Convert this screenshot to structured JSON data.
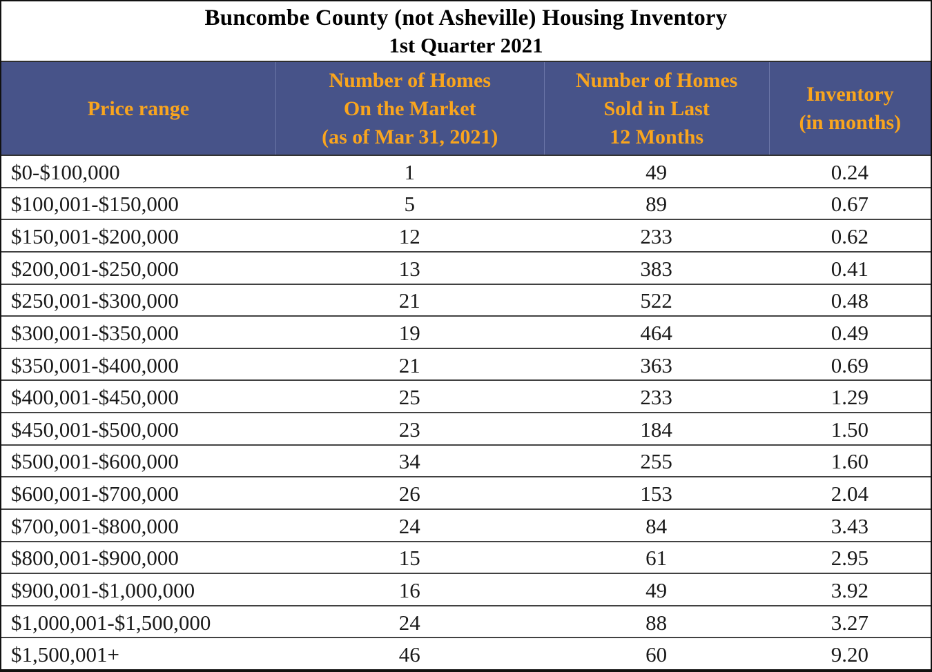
{
  "title": {
    "line1": "Buncombe County (not Asheville) Housing Inventory",
    "line2": "1st Quarter 2021"
  },
  "table": {
    "columns": [
      {
        "id": "price-range",
        "lines": [
          "Price range"
        ]
      },
      {
        "id": "on-market",
        "lines": [
          "Number of Homes",
          "On the Market",
          "(as of Mar 31, 2021)"
        ]
      },
      {
        "id": "sold-12-months",
        "lines": [
          "Number of Homes",
          "Sold in Last",
          "12 Months"
        ]
      },
      {
        "id": "inventory-months",
        "lines": [
          "Inventory",
          "(in months)"
        ]
      }
    ],
    "rows": [
      {
        "price_range": "$0-$100,000",
        "on_market": "1",
        "sold_12_months": "49",
        "inventory_months": "0.24"
      },
      {
        "price_range": "$100,001-$150,000",
        "on_market": "5",
        "sold_12_months": "89",
        "inventory_months": "0.67"
      },
      {
        "price_range": "$150,001-$200,000",
        "on_market": "12",
        "sold_12_months": "233",
        "inventory_months": "0.62"
      },
      {
        "price_range": "$200,001-$250,000",
        "on_market": "13",
        "sold_12_months": "383",
        "inventory_months": "0.41"
      },
      {
        "price_range": "$250,001-$300,000",
        "on_market": "21",
        "sold_12_months": "522",
        "inventory_months": "0.48"
      },
      {
        "price_range": "$300,001-$350,000",
        "on_market": "19",
        "sold_12_months": "464",
        "inventory_months": "0.49"
      },
      {
        "price_range": "$350,001-$400,000",
        "on_market": "21",
        "sold_12_months": "363",
        "inventory_months": "0.69"
      },
      {
        "price_range": "$400,001-$450,000",
        "on_market": "25",
        "sold_12_months": "233",
        "inventory_months": "1.29"
      },
      {
        "price_range": "$450,001-$500,000",
        "on_market": "23",
        "sold_12_months": "184",
        "inventory_months": "1.50"
      },
      {
        "price_range": "$500,001-$600,000",
        "on_market": "34",
        "sold_12_months": "255",
        "inventory_months": "1.60"
      },
      {
        "price_range": "$600,001-$700,000",
        "on_market": "26",
        "sold_12_months": "153",
        "inventory_months": "2.04"
      },
      {
        "price_range": "$700,001-$800,000",
        "on_market": "24",
        "sold_12_months": "84",
        "inventory_months": "3.43"
      },
      {
        "price_range": "$800,001-$900,000",
        "on_market": "15",
        "sold_12_months": "61",
        "inventory_months": "2.95"
      },
      {
        "price_range": "$900,001-$1,000,000",
        "on_market": "16",
        "sold_12_months": "49",
        "inventory_months": "3.92"
      },
      {
        "price_range": "$1,000,001-$1,500,000",
        "on_market": "24",
        "sold_12_months": "88",
        "inventory_months": "3.27"
      },
      {
        "price_range": "$1,500,001+",
        "on_market": "46",
        "sold_12_months": "60",
        "inventory_months": "9.20"
      }
    ]
  },
  "colors": {
    "header_background": "#475389",
    "header_text": "#F9A51E",
    "header_divider": "#6B76A8",
    "title_text": "#000000",
    "data_text": "#1A1A1A",
    "row_separator": "#414141",
    "outer_border": "#111111",
    "background": "#FFFFFF"
  },
  "chart_data": {
    "type": "table",
    "title": "Buncombe County (not Asheville) Housing Inventory — 1st Quarter 2021",
    "columns": [
      "Price range",
      "Number of Homes On the Market (as of Mar 31, 2021)",
      "Number of Homes Sold in Last 12 Months",
      "Inventory (in months)"
    ],
    "rows": [
      [
        "$0-$100,000",
        1,
        49,
        0.24
      ],
      [
        "$100,001-$150,000",
        5,
        89,
        0.67
      ],
      [
        "$150,001-$200,000",
        12,
        233,
        0.62
      ],
      [
        "$200,001-$250,000",
        13,
        383,
        0.41
      ],
      [
        "$250,001-$300,000",
        21,
        522,
        0.48
      ],
      [
        "$300,001-$350,000",
        19,
        464,
        0.49
      ],
      [
        "$350,001-$400,000",
        21,
        363,
        0.69
      ],
      [
        "$400,001-$450,000",
        25,
        233,
        1.29
      ],
      [
        "$450,001-$500,000",
        23,
        184,
        1.5
      ],
      [
        "$500,001-$600,000",
        34,
        255,
        1.6
      ],
      [
        "$600,001-$700,000",
        26,
        153,
        2.04
      ],
      [
        "$700,001-$800,000",
        24,
        84,
        3.43
      ],
      [
        "$800,001-$900,000",
        15,
        61,
        2.95
      ],
      [
        "$900,001-$1,000,000",
        16,
        49,
        3.92
      ],
      [
        "$1,000,001-$1,500,000",
        24,
        88,
        3.27
      ],
      [
        "$1,500,001+",
        46,
        60,
        9.2
      ]
    ]
  }
}
